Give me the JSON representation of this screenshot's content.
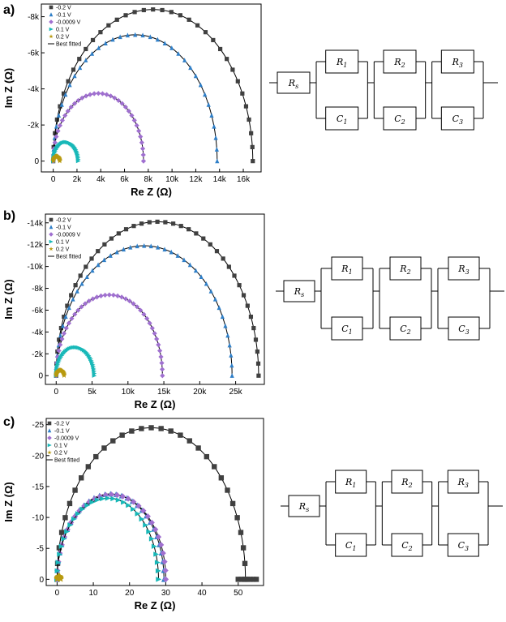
{
  "panels": [
    {
      "label": "a)"
    },
    {
      "label": "b)"
    },
    {
      "label": "c)"
    }
  ],
  "legend": {
    "entries": [
      "-0.2 V",
      "-0.1 V",
      "-0.0009 V",
      "0.1 V",
      "0.2 V"
    ],
    "fit_label": "Best fitted"
  },
  "colors": {
    "-0.2 V": "#404040",
    "-0.1 V": "#2f7fc8",
    "-0.0009 V": "#a070d0",
    "0.1 V": "#18b8b8",
    "0.2 V": "#b89a10"
  },
  "markers": {
    "-0.2 V": "square",
    "-0.1 V": "triangle-up",
    "-0.0009 V": "diamond",
    "0.1 V": "triangle-right",
    "0.2 V": "star"
  },
  "circuit": {
    "rs_label": "R_s",
    "elements": [
      {
        "r": "R_1",
        "c": "C_1"
      },
      {
        "r": "R_2",
        "c": "C_2"
      },
      {
        "r": "R_3",
        "c": "C_3"
      }
    ]
  },
  "chart_data": [
    {
      "type": "scatter",
      "xlabel": "Re Z (Ω)",
      "ylabel": "Im Z (Ω)",
      "xlim": [
        -1000,
        17500
      ],
      "ylim": [
        -8700,
        600
      ],
      "xticks": [
        0,
        2000,
        4000,
        6000,
        8000,
        10000,
        12000,
        14000,
        16000
      ],
      "xtick_labels": [
        "0",
        "2k",
        "4k",
        "6k",
        "8k",
        "10k",
        "12k",
        "14k",
        "16k"
      ],
      "yticks": [
        0,
        -2000,
        -4000,
        -6000,
        -8000
      ],
      "ytick_labels": [
        "0",
        "-2k",
        "-4k",
        "-6k",
        "-8k"
      ],
      "y_inverted": true,
      "series": [
        {
          "name": "-0.2 V",
          "arc": {
            "x0": 0,
            "x1": 16800,
            "peak": 8400
          }
        },
        {
          "name": "-0.1 V",
          "arc": {
            "x0": 0,
            "x1": 13800,
            "peak": 7000
          }
        },
        {
          "name": "-0.0009 V",
          "arc": {
            "x0": 0,
            "x1": 7600,
            "peak": 3750
          }
        },
        {
          "name": "0.1 V",
          "arc": {
            "x0": 0,
            "x1": 2100,
            "peak": 1050
          }
        },
        {
          "name": "0.2 V",
          "arc": {
            "x0": 0,
            "x1": 550,
            "peak": 270
          }
        }
      ]
    },
    {
      "type": "scatter",
      "xlabel": "Re Z (Ω)",
      "ylabel": "Im Z (Ω)",
      "xlim": [
        -1500,
        29000
      ],
      "ylim": [
        -14800,
        800
      ],
      "xticks": [
        0,
        5000,
        10000,
        15000,
        20000,
        25000
      ],
      "xtick_labels": [
        "0",
        "5k",
        "10k",
        "15k",
        "20k",
        "25k"
      ],
      "yticks": [
        0,
        -2000,
        -4000,
        -6000,
        -8000,
        -10000,
        -12000,
        -14000
      ],
      "ytick_labels": [
        "0",
        "-2k",
        "-4k",
        "-6k",
        "-8k",
        "-10k",
        "-12k",
        "-14k"
      ],
      "y_inverted": true,
      "series": [
        {
          "name": "-0.2 V",
          "arc": {
            "x0": 0,
            "x1": 28200,
            "peak": 14100
          }
        },
        {
          "name": "-0.1 V",
          "arc": {
            "x0": 0,
            "x1": 24500,
            "peak": 11900
          }
        },
        {
          "name": "-0.0009 V",
          "arc": {
            "x0": 0,
            "x1": 14800,
            "peak": 7400
          }
        },
        {
          "name": "0.1 V",
          "arc": {
            "x0": 0,
            "x1": 5300,
            "peak": 2600
          }
        },
        {
          "name": "0.2 V",
          "arc": {
            "x0": 0,
            "x1": 1100,
            "peak": 500
          }
        }
      ]
    },
    {
      "type": "scatter",
      "xlabel": "Re Z (Ω)",
      "ylabel": "Im Z (Ω)",
      "xlim": [
        -3,
        57
      ],
      "ylim": [
        -26,
        1
      ],
      "xticks": [
        0,
        10,
        20,
        30,
        40,
        50
      ],
      "xtick_labels": [
        "0",
        "10",
        "20",
        "30",
        "40",
        "50"
      ],
      "yticks": [
        0,
        -5,
        -10,
        -15,
        -20,
        -25
      ],
      "ytick_labels": [
        "0",
        "-5",
        "-10",
        "-15",
        "-20",
        "-25"
      ],
      "y_inverted": true,
      "series": [
        {
          "name": "-0.2 V",
          "arc": {
            "x0": 0,
            "x1": 52,
            "peak": 24.5
          },
          "tail": {
            "x_from": 50,
            "x_to": 55,
            "y": 0
          }
        },
        {
          "name": "-0.1 V",
          "arc": {
            "x0": 0,
            "x1": 29.5,
            "peak": 13.8
          }
        },
        {
          "name": "-0.0009 V",
          "arc": {
            "x0": 0,
            "x1": 30,
            "peak": 13.7
          }
        },
        {
          "name": "0.1 V",
          "arc": {
            "x0": 0,
            "x1": 28,
            "peak": 13.1
          }
        },
        {
          "name": "0.2 V",
          "arc": {
            "x0": 0,
            "x1": 1,
            "peak": 0.5
          }
        }
      ]
    }
  ]
}
